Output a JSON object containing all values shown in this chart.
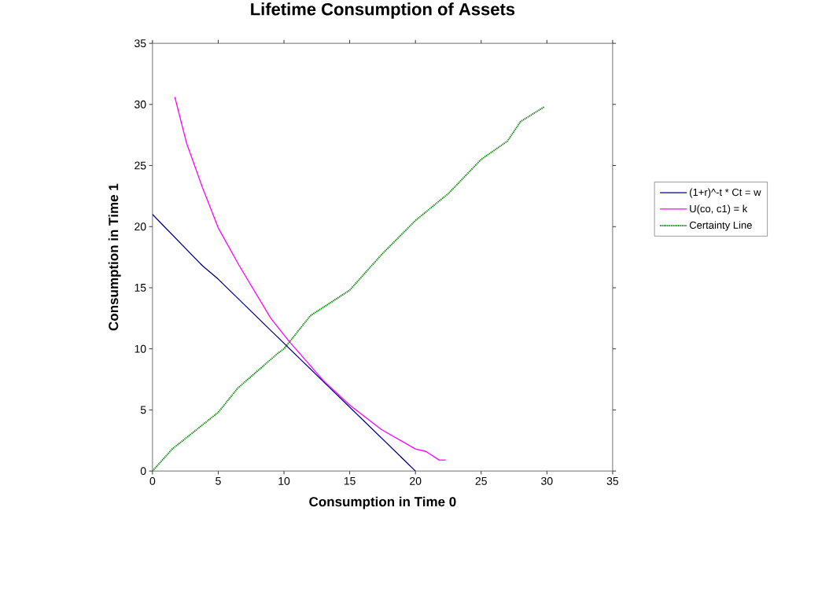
{
  "chart_data": {
    "type": "line",
    "title": "Lifetime Consumption of Assets",
    "xlabel": "Consumption in Time 0",
    "ylabel": "Consumption in Time 1",
    "xlim": [
      0,
      35
    ],
    "ylim": [
      0,
      35
    ],
    "xticks": [
      0,
      5,
      10,
      15,
      20,
      25,
      30,
      35
    ],
    "yticks": [
      0,
      5,
      10,
      15,
      20,
      25,
      30,
      35
    ],
    "grid": false,
    "legend": "right",
    "marker": "none",
    "series": [
      {
        "name": "(1+r)^-t * Ct = w",
        "color": "#000080",
        "line_style": "solid",
        "x": [
          0,
          3.8,
          5,
          9,
          20
        ],
        "values": [
          21,
          16.8,
          15.7,
          11.5,
          0
        ]
      },
      {
        "name": "U(co, c1) = k",
        "color": "#ff00ff",
        "line_style": "solid",
        "x": [
          1.7,
          2.6,
          3.8,
          5,
          6.6,
          9,
          10.4,
          13,
          15,
          17.4,
          20,
          20.8,
          21.8,
          22.3
        ],
        "values": [
          30.6,
          26.8,
          23.2,
          19.9,
          16.8,
          12.5,
          10.6,
          7.4,
          5.4,
          3.4,
          1.8,
          1.6,
          0.9,
          0.9
        ]
      },
      {
        "name": "Certainty Line",
        "color": "#008000",
        "line_style": "dotted",
        "x": [
          0,
          1.5,
          5,
          6.5,
          9.5,
          10,
          12,
          15,
          17.5,
          20,
          22.5,
          25,
          27,
          28,
          29.8
        ],
        "values": [
          0,
          1.8,
          4.8,
          6.8,
          9.6,
          10,
          12.7,
          14.8,
          17.8,
          20.5,
          22.7,
          25.5,
          27,
          28.6,
          29.8
        ]
      }
    ]
  }
}
